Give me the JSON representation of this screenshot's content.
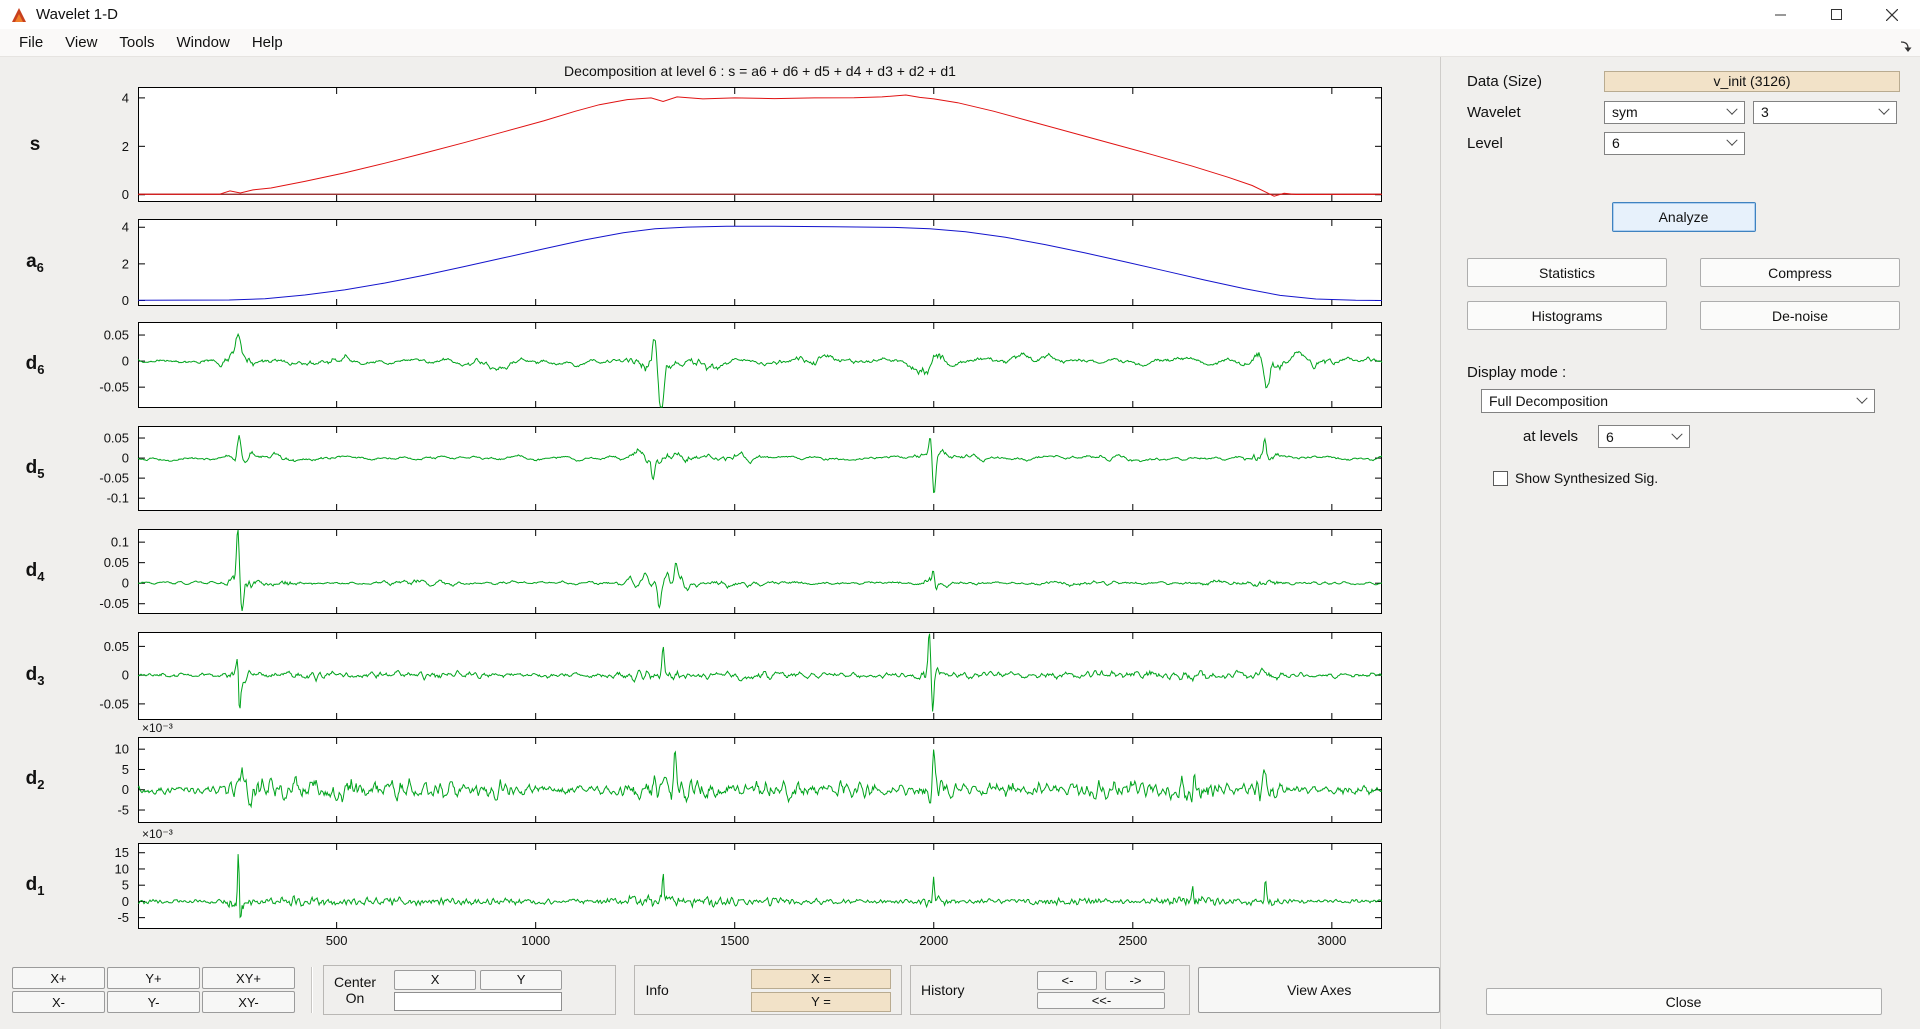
{
  "window": {
    "title": "Wavelet 1-D"
  },
  "menu": {
    "items": [
      "File",
      "View",
      "Tools",
      "Window",
      "Help"
    ]
  },
  "plot_panel": {
    "title": "Decomposition at level 6 : s = a6 + d6 + d5 + d4 + d3 + d2 + d1",
    "x_domain": [
      1,
      3126
    ],
    "x_ticks": [
      500,
      1000,
      1500,
      2000,
      2500,
      3000
    ]
  },
  "chart_data": [
    {
      "id": "s",
      "label": "s",
      "sub": "",
      "kind": "keypoints",
      "color": "#e01212",
      "baseline": [
        0.02,
        "#8c1616"
      ],
      "ylim": [
        -0.3,
        4.45
      ],
      "yticks": [
        0,
        2,
        4
      ],
      "points": [
        [
          1,
          0.02
        ],
        [
          205,
          0.02
        ],
        [
          232,
          0.16
        ],
        [
          258,
          0.07
        ],
        [
          290,
          0.2
        ],
        [
          335,
          0.28
        ],
        [
          420,
          0.55
        ],
        [
          520,
          0.9
        ],
        [
          620,
          1.3
        ],
        [
          720,
          1.72
        ],
        [
          820,
          2.15
        ],
        [
          920,
          2.6
        ],
        [
          1020,
          3.05
        ],
        [
          1100,
          3.45
        ],
        [
          1160,
          3.72
        ],
        [
          1230,
          3.93
        ],
        [
          1290,
          4.0
        ],
        [
          1320,
          3.85
        ],
        [
          1355,
          4.04
        ],
        [
          1420,
          3.96
        ],
        [
          1500,
          4.0
        ],
        [
          1600,
          3.97
        ],
        [
          1700,
          4.0
        ],
        [
          1800,
          4.01
        ],
        [
          1870,
          4.04
        ],
        [
          1930,
          4.12
        ],
        [
          1965,
          4.02
        ],
        [
          2000,
          3.96
        ],
        [
          2060,
          3.8
        ],
        [
          2150,
          3.45
        ],
        [
          2250,
          3.0
        ],
        [
          2350,
          2.55
        ],
        [
          2450,
          2.1
        ],
        [
          2550,
          1.65
        ],
        [
          2650,
          1.18
        ],
        [
          2740,
          0.72
        ],
        [
          2800,
          0.38
        ],
        [
          2835,
          0.1
        ],
        [
          2855,
          -0.06
        ],
        [
          2880,
          0.06
        ],
        [
          2910,
          0.01
        ],
        [
          3126,
          0.02
        ]
      ]
    },
    {
      "id": "a6",
      "label": "a",
      "sub": "6",
      "kind": "keypoints",
      "color": "#1414cc",
      "ylim": [
        -0.3,
        4.45
      ],
      "yticks": [
        0,
        2,
        4
      ],
      "points": [
        [
          1,
          0.01
        ],
        [
          230,
          0.03
        ],
        [
          320,
          0.1
        ],
        [
          420,
          0.3
        ],
        [
          520,
          0.58
        ],
        [
          620,
          0.95
        ],
        [
          720,
          1.38
        ],
        [
          820,
          1.85
        ],
        [
          920,
          2.33
        ],
        [
          1020,
          2.82
        ],
        [
          1120,
          3.3
        ],
        [
          1220,
          3.7
        ],
        [
          1300,
          3.92
        ],
        [
          1380,
          4.01
        ],
        [
          1480,
          4.05
        ],
        [
          1600,
          4.05
        ],
        [
          1750,
          4.03
        ],
        [
          1900,
          3.99
        ],
        [
          1990,
          3.92
        ],
        [
          2080,
          3.75
        ],
        [
          2180,
          3.45
        ],
        [
          2280,
          3.05
        ],
        [
          2380,
          2.6
        ],
        [
          2480,
          2.12
        ],
        [
          2580,
          1.62
        ],
        [
          2680,
          1.12
        ],
        [
          2780,
          0.65
        ],
        [
          2870,
          0.28
        ],
        [
          2960,
          0.08
        ],
        [
          3060,
          0.01
        ],
        [
          3126,
          0.0
        ]
      ]
    },
    {
      "id": "d6",
      "label": "d",
      "sub": "6",
      "kind": "noise",
      "color": "#00a31c",
      "ylim": [
        -0.09,
        0.075
      ],
      "yticks": [
        -0.05,
        0,
        0.05
      ],
      "seed": 11,
      "smooth": 14,
      "scale": 0.0062,
      "base": 1.0,
      "bursts": [
        [
          250,
          55,
          2.6
        ],
        [
          470,
          70,
          1.1
        ],
        [
          900,
          90,
          0.7
        ],
        [
          1290,
          45,
          3.6
        ],
        [
          1430,
          70,
          1.8
        ],
        [
          1700,
          90,
          0.9
        ],
        [
          1990,
          55,
          2.2
        ],
        [
          2260,
          90,
          0.7
        ],
        [
          2830,
          45,
          2.8
        ],
        [
          2960,
          60,
          1.2
        ]
      ],
      "spikes": [
        [
          1298,
          0.066,
          9
        ],
        [
          1316,
          -0.08,
          8
        ],
        [
          2836,
          -0.052,
          9
        ],
        [
          253,
          0.04,
          8
        ]
      ]
    },
    {
      "id": "d5",
      "label": "d",
      "sub": "5",
      "kind": "noise",
      "color": "#00a31c",
      "ylim": [
        -0.132,
        0.08
      ],
      "yticks": [
        -0.1,
        -0.05,
        0,
        0.05
      ],
      "seed": 22,
      "smooth": 8,
      "scale": 0.006,
      "base": 0.75,
      "bursts": [
        [
          255,
          30,
          3.4
        ],
        [
          335,
          55,
          1.4
        ],
        [
          1280,
          55,
          2.2
        ],
        [
          1360,
          45,
          2.2
        ],
        [
          1500,
          60,
          1.3
        ],
        [
          2000,
          32,
          2.6
        ],
        [
          2075,
          55,
          1.3
        ],
        [
          2450,
          85,
          0.5
        ],
        [
          2830,
          40,
          2.6
        ]
      ],
      "spikes": [
        [
          255,
          0.062,
          7
        ],
        [
          2001,
          -0.108,
          6
        ],
        [
          1992,
          0.046,
          5
        ],
        [
          2832,
          0.052,
          6
        ],
        [
          1295,
          -0.05,
          6
        ]
      ]
    },
    {
      "id": "d4",
      "label": "d",
      "sub": "4",
      "kind": "noise",
      "color": "#00a31c",
      "ylim": [
        -0.075,
        0.132
      ],
      "yticks": [
        -0.05,
        0,
        0.05,
        0.1
      ],
      "seed": 33,
      "smooth": 5,
      "scale": 0.0052,
      "base": 0.65,
      "bursts": [
        [
          255,
          26,
          4.2
        ],
        [
          335,
          60,
          1.3
        ],
        [
          700,
          90,
          0.7
        ],
        [
          1280,
          60,
          2.1
        ],
        [
          1355,
          42,
          2.6
        ],
        [
          1500,
          70,
          0.9
        ],
        [
          2000,
          32,
          2.1
        ],
        [
          2400,
          90,
          0.5
        ],
        [
          2700,
          70,
          0.7
        ],
        [
          2830,
          40,
          1.3
        ]
      ],
      "spikes": [
        [
          252,
          0.112,
          5
        ],
        [
          261,
          -0.06,
          5
        ],
        [
          1352,
          0.052,
          5
        ],
        [
          1999,
          0.042,
          4
        ],
        [
          1310,
          -0.045,
          5
        ]
      ]
    },
    {
      "id": "d3",
      "label": "d",
      "sub": "3",
      "kind": "noise",
      "color": "#00a31c",
      "ylim": [
        -0.078,
        0.075
      ],
      "yticks": [
        -0.05,
        0,
        0.05
      ],
      "seed": 44,
      "smooth": 3,
      "scale": 0.0042,
      "base": 0.85,
      "bursts": [
        [
          255,
          22,
          3.4
        ],
        [
          420,
          120,
          0.7
        ],
        [
          700,
          150,
          0.55
        ],
        [
          1300,
          80,
          1.4
        ],
        [
          1560,
          100,
          0.7
        ],
        [
          1990,
          26,
          2.6
        ],
        [
          2110,
          120,
          0.6
        ],
        [
          2480,
          150,
          0.7
        ],
        [
          2700,
          80,
          0.9
        ],
        [
          2830,
          42,
          1.3
        ]
      ],
      "spikes": [
        [
          256,
          -0.06,
          4
        ],
        [
          250,
          0.042,
          4
        ],
        [
          1989,
          0.062,
          4
        ],
        [
          1997,
          -0.068,
          4
        ],
        [
          1320,
          0.04,
          4
        ]
      ]
    },
    {
      "id": "d2",
      "label": "d",
      "sub": "2",
      "kind": "noise",
      "color": "#00a31c",
      "exp": "×10⁻³",
      "ylim": [
        -8.2,
        13
      ],
      "yticks": [
        -5,
        0,
        5,
        10
      ],
      "seed": 55,
      "smooth": 2,
      "scale": 0.85,
      "base": 1.0,
      "bursts": [
        [
          260,
          38,
          2.2
        ],
        [
          360,
          80,
          1.8
        ],
        [
          520,
          100,
          1.6
        ],
        [
          700,
          120,
          1.3
        ],
        [
          900,
          100,
          0.9
        ],
        [
          1290,
          80,
          2.2
        ],
        [
          1400,
          60,
          1.8
        ],
        [
          1600,
          100,
          1.3
        ],
        [
          1800,
          80,
          0.9
        ],
        [
          2000,
          42,
          2.2
        ],
        [
          2200,
          100,
          0.9
        ],
        [
          2450,
          85,
          1.1
        ],
        [
          2650,
          75,
          2.0
        ],
        [
          2830,
          42,
          1.6
        ]
      ],
      "spikes": [
        [
          262,
          8.5,
          4
        ],
        [
          2000,
          9.0,
          4
        ],
        [
          1350,
          7.0,
          4
        ],
        [
          2655,
          6.0,
          4
        ],
        [
          2830,
          5.0,
          4
        ]
      ]
    },
    {
      "id": "d1",
      "label": "d",
      "sub": "1",
      "kind": "noise",
      "color": "#00a31c",
      "exp": "×10⁻³",
      "ylim": [
        -8.5,
        18
      ],
      "yticks": [
        -5,
        0,
        5,
        10,
        15
      ],
      "seed": 66,
      "smooth": 1,
      "scale": 0.62,
      "base": 0.8,
      "bursts": [
        [
          255,
          26,
          3.6
        ],
        [
          400,
          90,
          1.2
        ],
        [
          620,
          150,
          0.9
        ],
        [
          900,
          120,
          0.7
        ],
        [
          1290,
          90,
          1.9
        ],
        [
          1450,
          70,
          1.4
        ],
        [
          1620,
          100,
          0.8
        ],
        [
          2000,
          42,
          1.5
        ],
        [
          2300,
          120,
          0.7
        ],
        [
          2650,
          90,
          1.5
        ],
        [
          2830,
          42,
          1.4
        ]
      ],
      "spikes": [
        [
          253,
          15.2,
          3
        ],
        [
          259,
          -5.0,
          3
        ],
        [
          1320,
          8.0,
          3
        ],
        [
          2000,
          7.0,
          3
        ],
        [
          2833,
          6.0,
          3
        ],
        [
          2650,
          5.5,
          3
        ]
      ]
    }
  ],
  "sidebar": {
    "data_label": "Data  (Size)",
    "data_value": "v_init  (3126)",
    "wavelet_label": "Wavelet",
    "wavelet_family": "sym",
    "wavelet_order": "3",
    "level_label": "Level",
    "level_value": "6",
    "analyze_button": "Analyze",
    "statistics_button": "Statistics",
    "compress_button": "Compress",
    "histograms_button": "Histograms",
    "denoise_button": "De-noise",
    "display_mode_label": "Display mode :",
    "display_mode_value": "Full Decomposition",
    "at_levels_label": "at levels",
    "at_levels_value": "6",
    "show_synthesized_label": "Show Synthesized Sig.",
    "close_button": "Close"
  },
  "toolbar": {
    "zoom": [
      "X+",
      "Y+",
      "XY+",
      "X-",
      "Y-",
      "XY-"
    ],
    "center_label_top": "Center",
    "center_label_bottom": "On",
    "x_button": "X",
    "y_button": "Y",
    "center_value": "",
    "info_label": "Info",
    "x_field": "X =",
    "y_field": "Y =",
    "history_label": "History",
    "history_back": "<-",
    "history_forward": "->",
    "history_rewind": "<<-",
    "view_axes_button": "View Axes"
  }
}
